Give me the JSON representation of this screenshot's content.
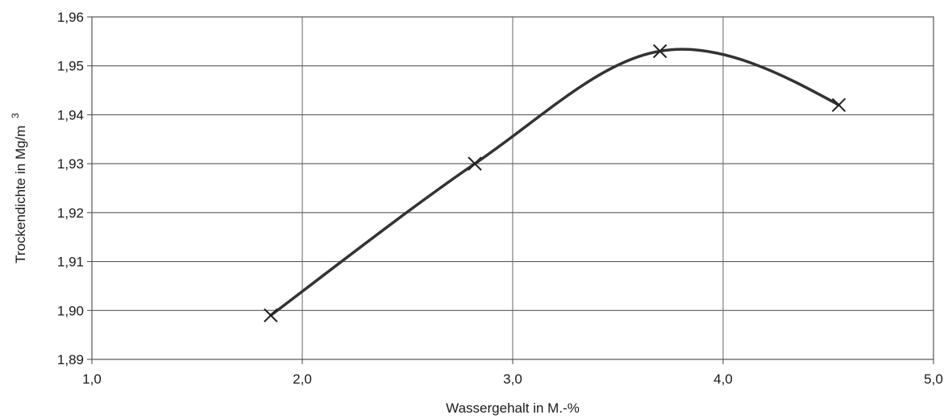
{
  "chart_data": {
    "type": "line",
    "xlabel": "Wassergehalt in M.-%",
    "ylabel": "Trockendichte in Mg/m",
    "ylabel_sup": "3",
    "xlim": [
      1.0,
      5.0
    ],
    "ylim": [
      1.89,
      1.96
    ],
    "x_ticks": [
      1.0,
      2.0,
      3.0,
      4.0,
      5.0
    ],
    "x_tick_labels": [
      "1,0",
      "2,0",
      "3,0",
      "4,0",
      "5,0"
    ],
    "y_ticks": [
      1.89,
      1.9,
      1.91,
      1.92,
      1.93,
      1.94,
      1.95,
      1.96
    ],
    "y_tick_labels": [
      "1,89",
      "1,90",
      "1,91",
      "1,92",
      "1,93",
      "1,94",
      "1,95",
      "1,96"
    ],
    "grid": true,
    "legend": "none",
    "series": [
      {
        "x": [
          1.85,
          2.82,
          3.7,
          4.55
        ],
        "y": [
          1.899,
          1.93,
          1.953,
          1.942
        ],
        "marker": "x",
        "smooth": true,
        "color": "#333333"
      }
    ]
  }
}
